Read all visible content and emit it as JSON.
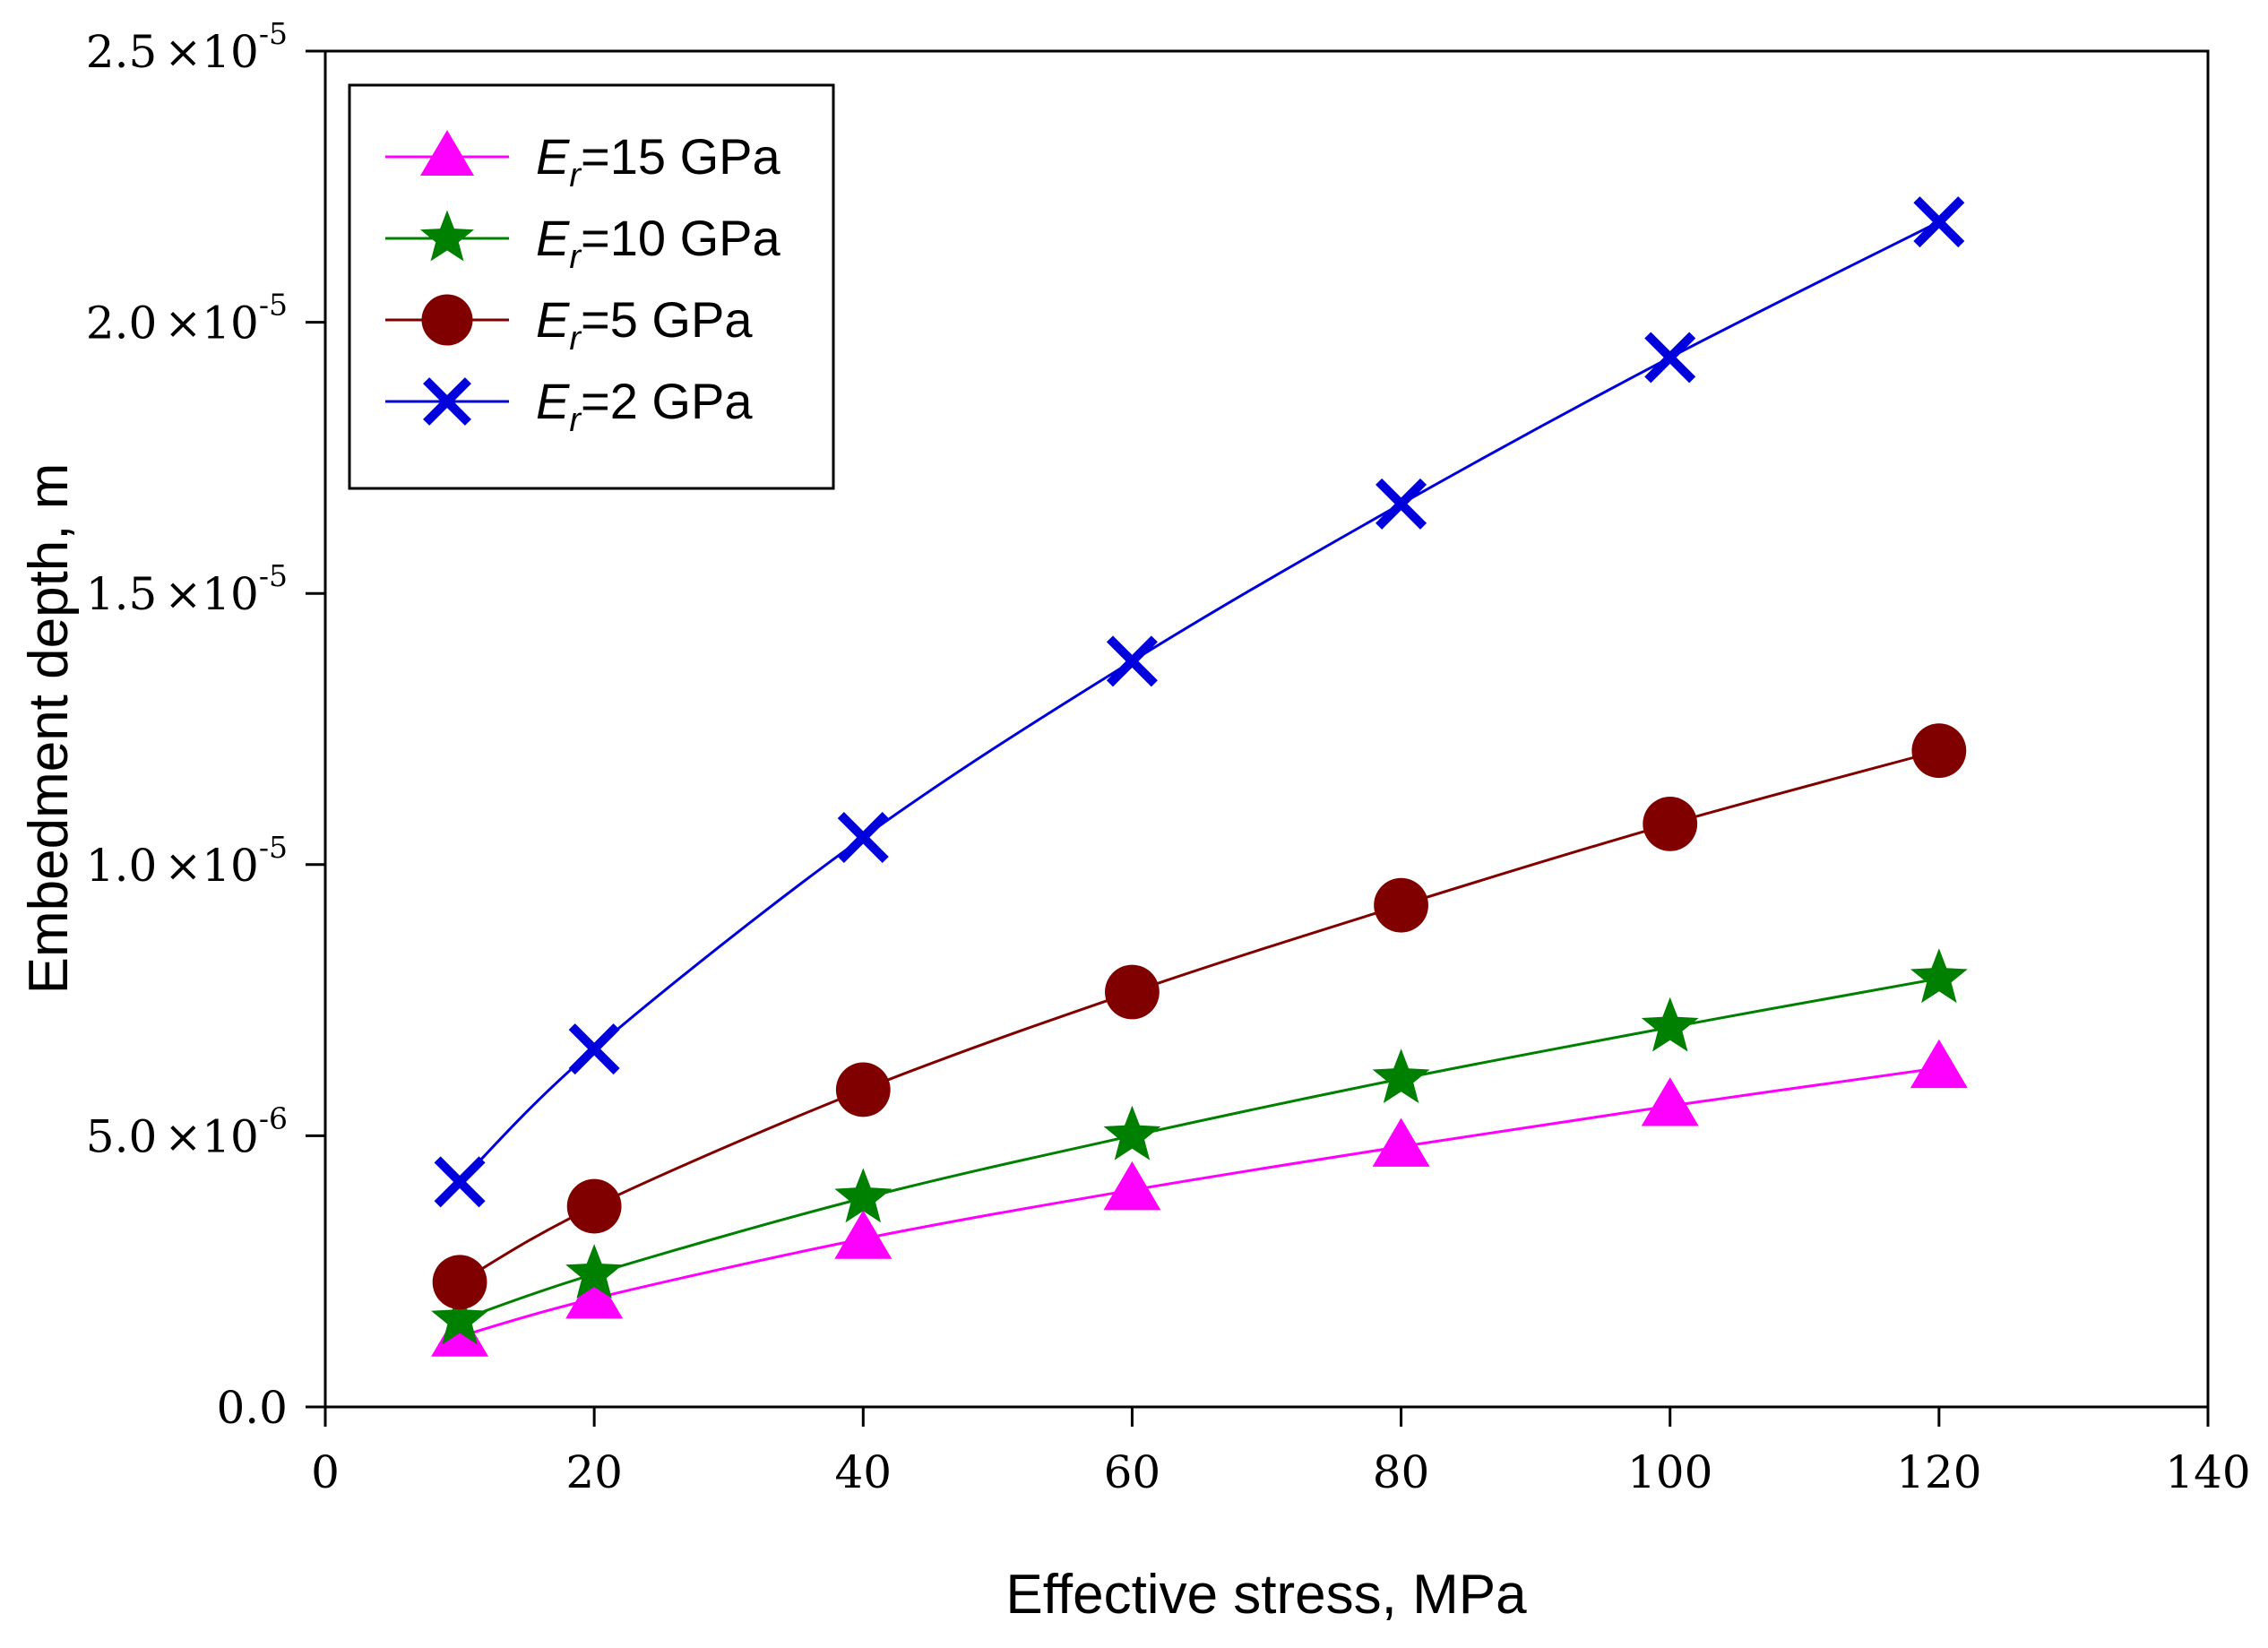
{
  "chart_data": {
    "type": "line",
    "title": "",
    "xlabel": "Effective stress, MPa",
    "ylabel": "Embedment depth, m",
    "xlim": [
      0,
      140
    ],
    "ylim": [
      0,
      2.5e-05
    ],
    "x_ticks": [
      0,
      20,
      40,
      60,
      80,
      100,
      120,
      140
    ],
    "x_tick_labels": [
      "0",
      "20",
      "40",
      "60",
      "80",
      "100",
      "120",
      "140"
    ],
    "y_ticks": [
      {
        "value": 0,
        "mantissa": "0.0",
        "times": "",
        "exp": ""
      },
      {
        "value": 5e-06,
        "mantissa": "5.0",
        "times": "×10",
        "exp": "-6"
      },
      {
        "value": 1e-05,
        "mantissa": "1.0",
        "times": "×10",
        "exp": "-5"
      },
      {
        "value": 1.5e-05,
        "mantissa": "1.5",
        "times": "×10",
        "exp": "-5"
      },
      {
        "value": 2e-05,
        "mantissa": "2.0",
        "times": "×10",
        "exp": "-5"
      },
      {
        "value": 2.5e-05,
        "mantissa": "2.5",
        "times": "×10",
        "exp": "-5"
      }
    ],
    "grid": false,
    "legend_position": "top-left",
    "x": [
      10,
      20,
      40,
      60,
      80,
      100,
      120
    ],
    "series": [
      {
        "var": "E",
        "sub": "r",
        "rest": "=15 GPa",
        "color": "#ff00ff",
        "marker": "triangle",
        "values": [
          1.3e-06,
          2e-06,
          3.1e-06,
          4e-06,
          4.8e-06,
          5.55e-06,
          6.25e-06
        ]
      },
      {
        "var": "E",
        "sub": "r",
        "rest": "=10 GPa",
        "color": "#008000",
        "marker": "star",
        "values": [
          1.6e-06,
          2.45e-06,
          3.85e-06,
          5e-06,
          6.05e-06,
          7e-06,
          7.9e-06
        ]
      },
      {
        "var": "E",
        "sub": "r",
        "rest": "=5 GPa",
        "color": "#800000",
        "marker": "circle",
        "values": [
          2.3e-06,
          3.7e-06,
          5.85e-06,
          7.65e-06,
          9.25e-06,
          1.075e-05,
          1.21e-05
        ]
      },
      {
        "var": "E",
        "sub": "r",
        "rest": "=2 GPa",
        "color": "#0000dd",
        "marker": "x",
        "values": [
          4.15e-06,
          6.6e-06,
          1.05e-05,
          1.375e-05,
          1.665e-05,
          1.935e-05,
          2.185e-05
        ]
      }
    ]
  }
}
